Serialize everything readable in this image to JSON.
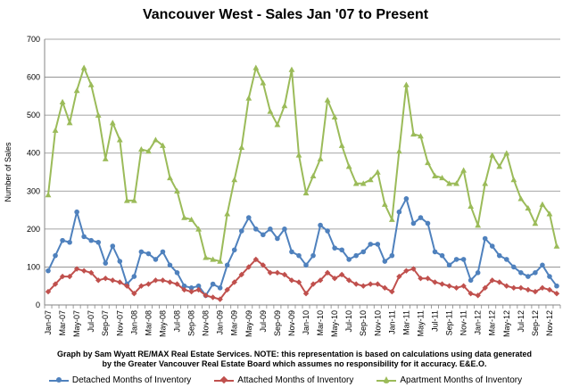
{
  "chart_data": {
    "type": "line",
    "title": "Vancouver West - Sales Jan '07 to Present",
    "ylabel": "Number of Sales",
    "xlabel": "",
    "ylim": [
      0,
      700
    ],
    "yticks": [
      0,
      100,
      200,
      300,
      400,
      500,
      600,
      700
    ],
    "grid": true,
    "legend_position": "bottom",
    "credit": "Graph by Sam Wyatt RE/MAX Real Estate Services.    NOTE: this representation is based on calculations using data generated by the Greater Vancouver Real Estate Board which assumes no responsibility for it accuracy. E&E.O.",
    "x_tick_labels": [
      "Jan-07",
      "Mar-07",
      "May-07",
      "Jul-07",
      "Sep-07",
      "Nov-07",
      "Jan-08",
      "Mar-08",
      "May-08",
      "Jul-08",
      "Sep-08",
      "Nov-08",
      "Jan-09",
      "Mar-09",
      "May-09",
      "Jul-09",
      "Sep-09",
      "Nov-09",
      "Jan-10",
      "Mar-10",
      "May-10",
      "Jul-10",
      "Sep-10",
      "Nov-10",
      "Jan-11",
      "Mar-11",
      "May-11",
      "Jul-11",
      "Sep-11",
      "Nov-11",
      "Jan-12",
      "Mar-12",
      "May-12",
      "Jul-12",
      "Sep-12",
      "Nov-12"
    ],
    "x": [
      "Jan-07",
      "Feb-07",
      "Mar-07",
      "Apr-07",
      "May-07",
      "Jun-07",
      "Jul-07",
      "Aug-07",
      "Sep-07",
      "Oct-07",
      "Nov-07",
      "Dec-07",
      "Jan-08",
      "Feb-08",
      "Mar-08",
      "Apr-08",
      "May-08",
      "Jun-08",
      "Jul-08",
      "Aug-08",
      "Sep-08",
      "Oct-08",
      "Nov-08",
      "Dec-08",
      "Jan-09",
      "Feb-09",
      "Mar-09",
      "Apr-09",
      "May-09",
      "Jun-09",
      "Jul-09",
      "Aug-09",
      "Sep-09",
      "Oct-09",
      "Nov-09",
      "Dec-09",
      "Jan-10",
      "Feb-10",
      "Mar-10",
      "Apr-10",
      "May-10",
      "Jun-10",
      "Jul-10",
      "Aug-10",
      "Sep-10",
      "Oct-10",
      "Nov-10",
      "Dec-10",
      "Jan-11",
      "Feb-11",
      "Mar-11",
      "Apr-11",
      "May-11",
      "Jun-11",
      "Jul-11",
      "Aug-11",
      "Sep-11",
      "Oct-11",
      "Nov-11",
      "Dec-11",
      "Jan-12",
      "Feb-12",
      "Mar-12",
      "Apr-12",
      "May-12",
      "Jun-12",
      "Jul-12",
      "Aug-12",
      "Sep-12",
      "Oct-12",
      "Nov-12",
      "Dec-12"
    ],
    "series": [
      {
        "name": "Detached Months of Inventory",
        "color": "#4f81bd",
        "marker": "circle",
        "values": [
          90,
          130,
          170,
          165,
          245,
          180,
          170,
          165,
          110,
          155,
          115,
          55,
          75,
          140,
          135,
          120,
          140,
          105,
          85,
          50,
          45,
          50,
          25,
          55,
          45,
          105,
          145,
          195,
          230,
          200,
          185,
          200,
          175,
          200,
          140,
          130,
          105,
          130,
          210,
          195,
          150,
          145,
          120,
          130,
          140,
          160,
          160,
          115,
          130,
          245,
          280,
          215,
          230,
          215,
          140,
          130,
          105,
          120,
          120,
          65,
          85,
          175,
          155,
          130,
          120,
          100,
          85,
          75,
          85,
          105,
          75,
          50
        ]
      },
      {
        "name": "Attached Months of Inventory",
        "color": "#c0504d",
        "marker": "diamond",
        "values": [
          35,
          55,
          75,
          75,
          95,
          90,
          85,
          65,
          70,
          65,
          60,
          50,
          30,
          50,
          55,
          65,
          65,
          60,
          55,
          40,
          35,
          40,
          25,
          20,
          15,
          40,
          60,
          80,
          100,
          120,
          105,
          85,
          85,
          80,
          65,
          60,
          30,
          55,
          65,
          85,
          70,
          80,
          65,
          55,
          50,
          55,
          55,
          45,
          35,
          75,
          90,
          95,
          70,
          70,
          60,
          55,
          50,
          45,
          50,
          30,
          25,
          45,
          65,
          60,
          50,
          45,
          45,
          40,
          35,
          45,
          40,
          30
        ]
      },
      {
        "name": "Apartment Months of Inventory",
        "color": "#9bbb59",
        "marker": "triangle",
        "values": [
          290,
          460,
          535,
          480,
          565,
          625,
          580,
          500,
          385,
          480,
          435,
          275,
          275,
          410,
          405,
          435,
          420,
          335,
          300,
          230,
          225,
          200,
          125,
          120,
          115,
          240,
          330,
          415,
          545,
          625,
          585,
          510,
          475,
          525,
          620,
          395,
          295,
          340,
          385,
          540,
          495,
          420,
          365,
          320,
          320,
          330,
          350,
          265,
          225,
          405,
          580,
          450,
          445,
          375,
          340,
          335,
          320,
          320,
          355,
          260,
          210,
          320,
          395,
          365,
          400,
          330,
          280,
          255,
          215,
          265,
          240,
          155
        ]
      }
    ]
  }
}
